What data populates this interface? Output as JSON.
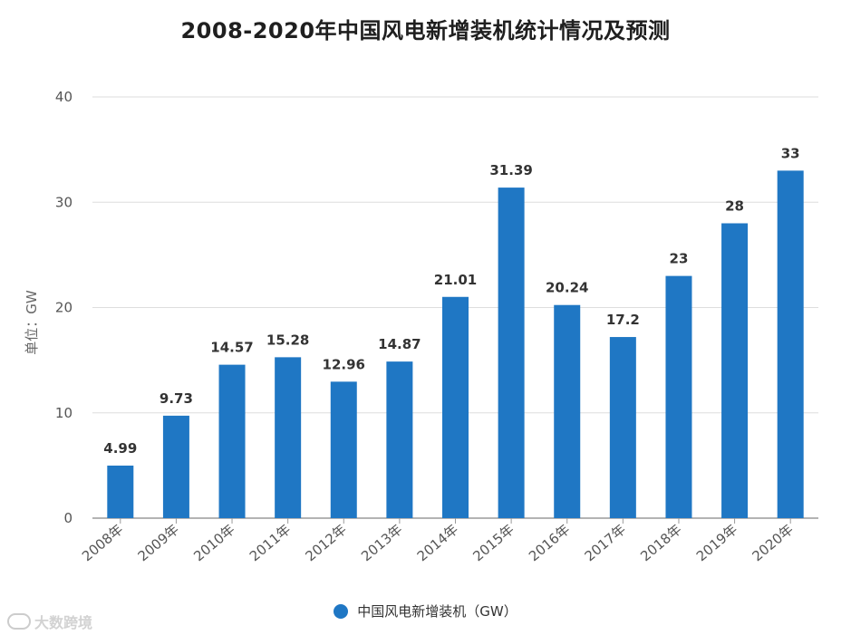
{
  "chart_data": {
    "type": "bar",
    "title": "2008-2020年中国风电新增装机统计情况及预测",
    "xlabel": "",
    "ylabel": "单位：GW",
    "ylim": [
      0,
      40
    ],
    "yticks": [
      "0",
      "10",
      "20",
      "30",
      "40"
    ],
    "grid": true,
    "legend_position": "bottom-center",
    "categories": [
      "2008年",
      "2009年",
      "2010年",
      "2011年",
      "2012年",
      "2013年",
      "2014年",
      "2015年",
      "2016年",
      "2017年",
      "2018年",
      "2019年",
      "2020年"
    ],
    "series": [
      {
        "name": "中国风电新增装机（GW）",
        "color": "#1f77c4",
        "values": [
          4.99,
          9.73,
          14.57,
          15.28,
          12.96,
          14.87,
          21.01,
          31.39,
          20.24,
          17.2,
          23,
          28,
          33
        ],
        "labels": [
          "4.99",
          "9.73",
          "14.57",
          "15.28",
          "12.96",
          "14.87",
          "21.01",
          "31.39",
          "20.24",
          "17.2",
          "23",
          "28",
          "33"
        ]
      }
    ]
  },
  "watermark": {
    "text": "大数跨境"
  }
}
